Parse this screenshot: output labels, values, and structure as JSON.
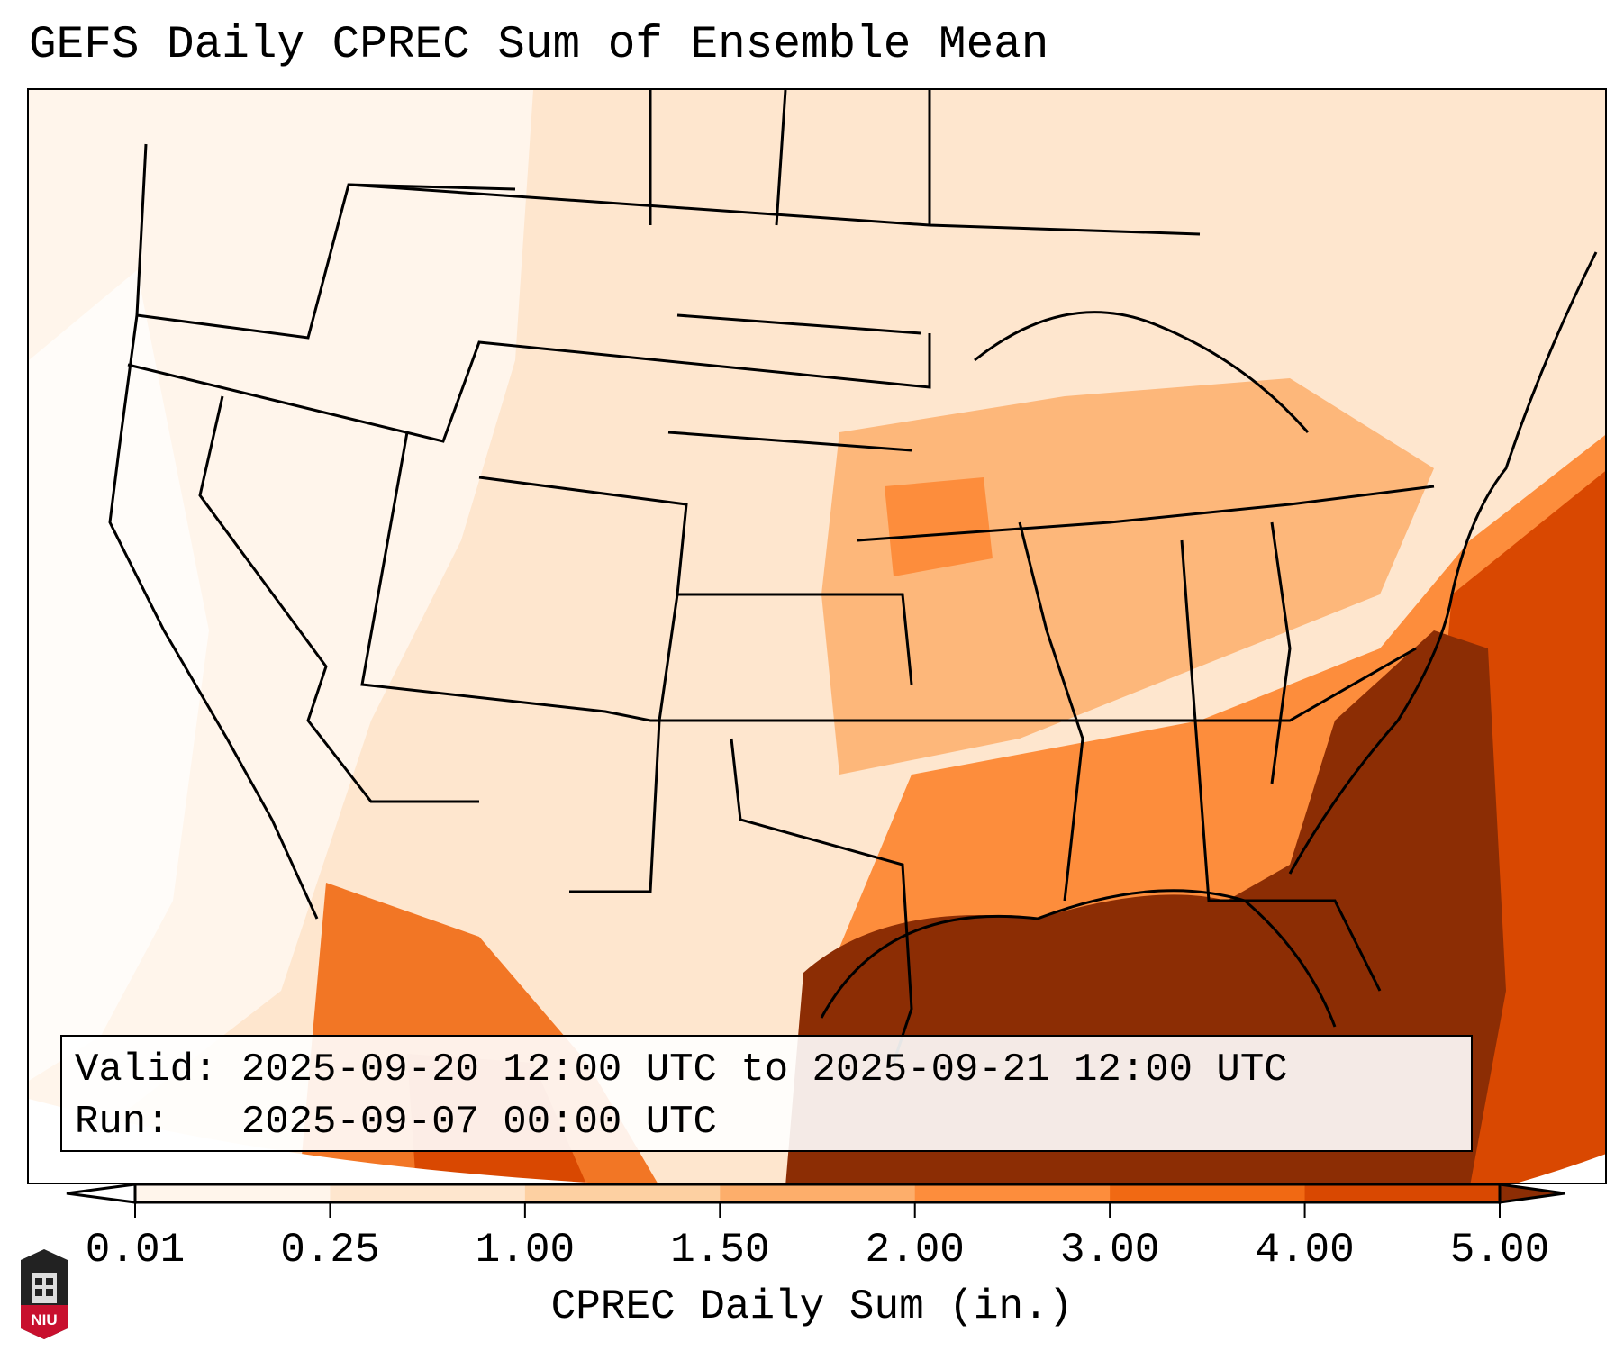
{
  "title": "GEFS Daily CPREC Sum of Ensemble Mean",
  "info": {
    "valid_label": "Valid:",
    "valid_value": "2025-09-20 12:00 UTC to 2025-09-21 12:00 UTC",
    "run_label": "Run:",
    "run_value": "2025-09-07 00:00 UTC"
  },
  "colorbar": {
    "label": "CPREC Daily Sum (in.)",
    "ticks": [
      "0.01",
      "0.25",
      "1.00",
      "1.50",
      "2.00",
      "3.00",
      "4.00",
      "5.00"
    ],
    "colors": [
      "#fff5eb",
      "#fee6ce",
      "#fdd0a2",
      "#fdae6b",
      "#fd8d3c",
      "#f16913",
      "#d94801"
    ],
    "under_color": "#ffffff",
    "over_color": "#8c2d04"
  },
  "logo": {
    "text": "NIU"
  }
}
